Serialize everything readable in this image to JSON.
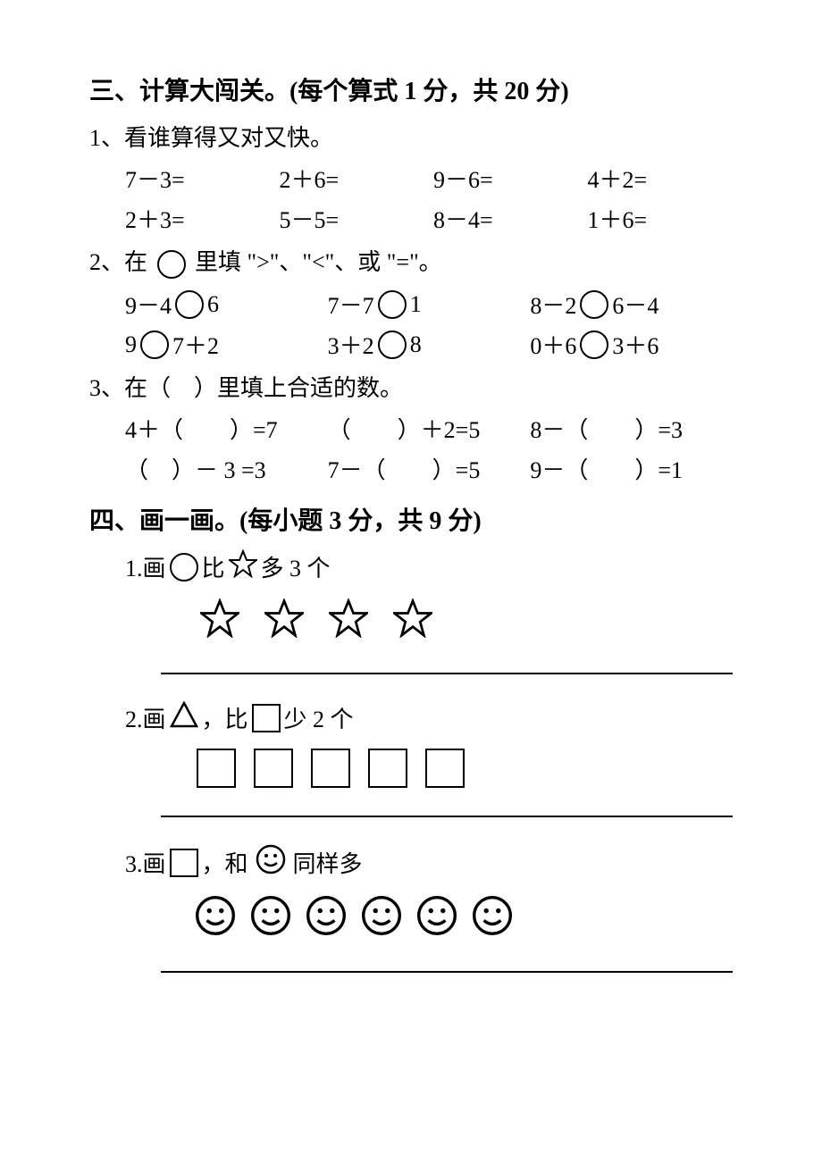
{
  "section3": {
    "heading": "三、计算大闯关。(每个算式 1 分，共 20 分)",
    "q1": {
      "title": "1、看谁算得又对又快。",
      "rows": [
        [
          "7－3=",
          "2＋6=",
          "9－6=",
          "4＋2="
        ],
        [
          "2＋3=",
          "5－5=",
          "8－4=",
          "1＋6="
        ]
      ]
    },
    "q2": {
      "title_pre": "2、在",
      "title_post": "里填 \">\"、\"<\"、或 \"=\"。",
      "rows": [
        [
          {
            "left": "9－4",
            "right": "6"
          },
          {
            "left": "7－7",
            "right": "1"
          },
          {
            "left": "8－2",
            "right": "6－4"
          }
        ],
        [
          {
            "left": "9",
            "right": "7＋2"
          },
          {
            "left": "3＋2",
            "right": "8"
          },
          {
            "left": "0＋6",
            "right": "3＋6"
          }
        ]
      ]
    },
    "q3": {
      "title": "3、在（　）里填上合适的数。",
      "rows": [
        [
          "4＋（　　）=7",
          "（　　）＋2=5",
          "8－（　　）=3"
        ],
        [
          "（　）－ 3 =3",
          "7－（　　）=5",
          "9－（　　）=1"
        ]
      ]
    }
  },
  "section4": {
    "heading": "四、画一画。(每小题 3 分，共 9 分)",
    "q1": {
      "pre": "1.画",
      "mid": "比",
      "post": "多 3 个",
      "star_count": 4
    },
    "q2": {
      "pre": "2.画",
      "mid": "，比",
      "post": "少 2 个",
      "square_count": 5
    },
    "q3": {
      "pre": "3.画",
      "mid": "，和",
      "post": "同样多",
      "smiley_count": 6
    }
  }
}
